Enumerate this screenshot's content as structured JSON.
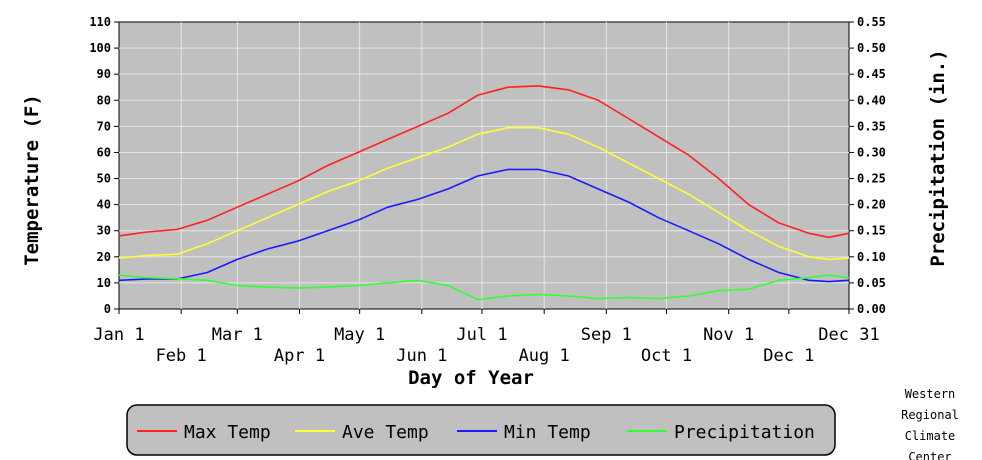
{
  "chart_data": {
    "type": "line",
    "xlabel": "Day of Year",
    "ylabel_left": "Temperature (F)",
    "ylabel_right": "Precipitation (in.)",
    "xlim": [
      1,
      365
    ],
    "ylim_left": [
      0,
      110
    ],
    "ylim_right": [
      0,
      0.55
    ],
    "grid": true,
    "legend_position": "bottom",
    "x_ticks_row1": [
      {
        "day": 1,
        "label": "Jan 1"
      },
      {
        "day": 60,
        "label": "Mar 1"
      },
      {
        "day": 121,
        "label": "May 1"
      },
      {
        "day": 182,
        "label": "Jul 1"
      },
      {
        "day": 244,
        "label": "Sep 1"
      },
      {
        "day": 305,
        "label": "Nov 1"
      },
      {
        "day": 365,
        "label": "Dec 31"
      }
    ],
    "x_ticks_row2": [
      {
        "day": 32,
        "label": "Feb 1"
      },
      {
        "day": 91,
        "label": "Apr 1"
      },
      {
        "day": 152,
        "label": "Jun 1"
      },
      {
        "day": 213,
        "label": "Aug 1"
      },
      {
        "day": 274,
        "label": "Oct 1"
      },
      {
        "day": 335,
        "label": "Dec 1"
      }
    ],
    "y_ticks_left": [
      "0",
      "10",
      "20",
      "30",
      "40",
      "50",
      "60",
      "70",
      "80",
      "90",
      "100",
      "110"
    ],
    "y_ticks_right": [
      "0.00",
      "0.05",
      "0.10",
      "0.15",
      "0.20",
      "0.25",
      "0.30",
      "0.35",
      "0.40",
      "0.45",
      "0.50",
      "0.55"
    ],
    "series": [
      {
        "name": "Max Temp",
        "axis": "left",
        "color": "#ff2020",
        "x": [
          1,
          15,
          30,
          45,
          60,
          75,
          90,
          105,
          120,
          135,
          150,
          165,
          180,
          195,
          210,
          225,
          240,
          255,
          270,
          285,
          300,
          315,
          330,
          345,
          355,
          365
        ],
        "y": [
          28,
          29.5,
          30.5,
          34,
          39,
          44,
          49,
          55,
          60,
          65,
          70,
          75,
          82,
          85,
          85.5,
          84,
          80,
          73,
          66,
          59,
          50,
          40,
          33,
          29,
          27.5,
          29
        ]
      },
      {
        "name": "Ave Temp",
        "axis": "left",
        "color": "#ffff33",
        "x": [
          1,
          15,
          30,
          45,
          60,
          75,
          90,
          105,
          120,
          135,
          150,
          165,
          180,
          195,
          210,
          225,
          240,
          255,
          270,
          285,
          300,
          315,
          330,
          345,
          355,
          365
        ],
        "y": [
          19.5,
          20.5,
          21,
          25,
          30,
          35,
          40,
          45,
          49,
          54,
          58,
          62,
          67,
          69.5,
          69.5,
          67,
          62,
          56,
          50,
          44,
          37,
          30,
          24,
          20,
          19,
          19.5
        ]
      },
      {
        "name": "Min Temp",
        "axis": "left",
        "color": "#1a1aff",
        "x": [
          1,
          15,
          30,
          45,
          60,
          75,
          90,
          105,
          120,
          135,
          150,
          165,
          180,
          195,
          210,
          225,
          240,
          255,
          270,
          285,
          300,
          315,
          330,
          345,
          355,
          365
        ],
        "y": [
          11,
          11.5,
          11.5,
          14,
          19,
          23,
          26,
          30,
          34,
          39,
          42,
          46,
          51,
          53.5,
          53.5,
          51,
          46,
          41,
          35,
          30,
          25,
          19,
          14,
          11,
          10.5,
          11
        ]
      },
      {
        "name": "Precipitation",
        "axis": "right",
        "color": "#33ff33",
        "x": [
          1,
          15,
          30,
          45,
          60,
          75,
          90,
          105,
          120,
          135,
          150,
          165,
          180,
          195,
          210,
          225,
          240,
          255,
          270,
          285,
          300,
          315,
          330,
          345,
          355,
          365
        ],
        "y": [
          0.065,
          0.06,
          0.058,
          0.055,
          0.045,
          0.042,
          0.04,
          0.042,
          0.045,
          0.05,
          0.055,
          0.045,
          0.018,
          0.025,
          0.028,
          0.025,
          0.02,
          0.022,
          0.02,
          0.025,
          0.035,
          0.038,
          0.055,
          0.06,
          0.065,
          0.06
        ]
      }
    ]
  },
  "credit": [
    "Western",
    "Regional",
    "Climate",
    "Center"
  ]
}
